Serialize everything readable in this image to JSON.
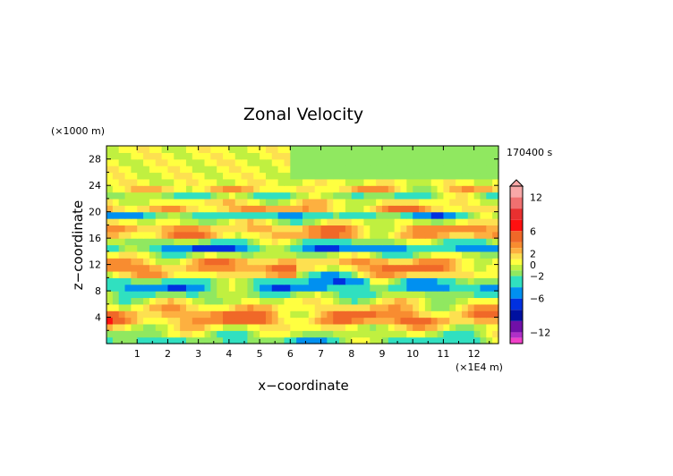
{
  "chart_data": {
    "type": "heatmap",
    "title": "Zonal Velocity",
    "xlabel": "x−coordinate",
    "ylabel": "z−coordinate",
    "x_unit": "(×1E4 m)",
    "y_unit": "(×1000 m)",
    "time_label": "170400 s",
    "xlim": [
      0,
      12.8
    ],
    "ylim": [
      0,
      30
    ],
    "x_ticks": [
      1,
      2,
      3,
      4,
      5,
      6,
      7,
      8,
      9,
      10,
      11,
      12
    ],
    "y_ticks": [
      4,
      8,
      12,
      16,
      20,
      24,
      28
    ],
    "grid": false,
    "colorbar": {
      "placement": "right",
      "range": [
        -14,
        14
      ],
      "tick_values": [
        12,
        6,
        2,
        0,
        -2,
        -6,
        -12
      ],
      "tick_labels": [
        "12",
        "6",
        "2",
        "0",
        "−2",
        "−6",
        "−12"
      ],
      "levels": [
        {
          "from": 12,
          "to": 14,
          "color": "#f8a8a8"
        },
        {
          "from": 10,
          "to": 12,
          "color": "#f07070"
        },
        {
          "from": 8,
          "to": 10,
          "color": "#e83030"
        },
        {
          "from": 6,
          "to": 8,
          "color": "#ff1010"
        },
        {
          "from": 4,
          "to": 6,
          "color": "#f06828"
        },
        {
          "from": 3,
          "to": 4,
          "color": "#f88c30"
        },
        {
          "from": 2,
          "to": 3,
          "color": "#fdb040"
        },
        {
          "from": 1,
          "to": 2,
          "color": "#fde050"
        },
        {
          "from": 0,
          "to": 1,
          "color": "#ffff40"
        },
        {
          "from": -1,
          "to": 0,
          "color": "#c0f040"
        },
        {
          "from": -2,
          "to": -1,
          "color": "#90e860"
        },
        {
          "from": -4,
          "to": -2,
          "color": "#30e0c0"
        },
        {
          "from": -6,
          "to": -4,
          "color": "#0090f0"
        },
        {
          "from": -8,
          "to": -6,
          "color": "#0030e0"
        },
        {
          "from": -10,
          "to": -8,
          "color": "#0010a0"
        },
        {
          "from": -12,
          "to": -10,
          "color": "#7010a8"
        },
        {
          "from": -13,
          "to": -12,
          "color": "#b030c8"
        },
        {
          "from": -14,
          "to": -13,
          "color": "#f040c8"
        }
      ]
    },
    "rows_note": "",
    "y_rows": [
      0.5,
      1.5,
      2.5,
      3.5,
      4.5,
      5.5,
      6.5,
      7.5,
      8.5,
      9.5,
      10.5,
      11.5,
      12.5,
      13.5,
      14.5,
      15.5,
      16.5,
      17.5,
      18.5,
      19.5,
      20.5,
      21.5,
      22.5,
      23.5,
      24.5,
      25.5,
      26.5,
      27.5,
      28.5,
      29.5
    ],
    "row_profile": [
      -3,
      -1,
      1,
      4,
      4,
      2,
      0,
      -2,
      -5,
      -3,
      2,
      4,
      3,
      -1,
      -6,
      -2,
      3,
      3,
      0,
      -4,
      3,
      1,
      -2,
      2,
      0,
      -1,
      0,
      0,
      0,
      0
    ]
  }
}
